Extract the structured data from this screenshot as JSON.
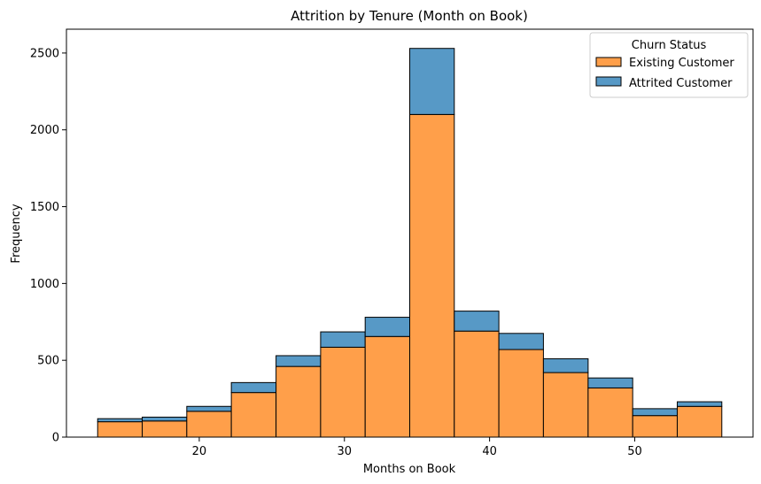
{
  "chart_data": {
    "type": "bar",
    "title": "Attrition by Tenure (Month on Book)",
    "xlabel": "Months on Book",
    "ylabel": "Frequency",
    "stacked": true,
    "bin_edges": [
      13,
      16.07,
      19.14,
      22.21,
      25.29,
      28.36,
      31.43,
      34.5,
      37.57,
      40.64,
      43.71,
      46.79,
      49.86,
      52.93,
      56
    ],
    "x_ticks": [
      20,
      30,
      40,
      50
    ],
    "y_ticks": [
      0,
      500,
      1000,
      1500,
      2000,
      2500
    ],
    "xlim": [
      10.85,
      58.15
    ],
    "ylim": [
      0,
      2655
    ],
    "grid": false,
    "legend_position": "top-right",
    "legend_title": "Churn Status",
    "series": [
      {
        "name": "Existing Customer",
        "color": "#ff9f4a",
        "values": [
          100,
          105,
          168,
          290,
          460,
          585,
          655,
          2100,
          690,
          570,
          420,
          320,
          140,
          200
        ]
      },
      {
        "name": "Attrited Customer",
        "color": "#5799c6",
        "values": [
          20,
          25,
          32,
          65,
          70,
          100,
          125,
          430,
          130,
          105,
          90,
          65,
          45,
          30
        ]
      }
    ]
  }
}
